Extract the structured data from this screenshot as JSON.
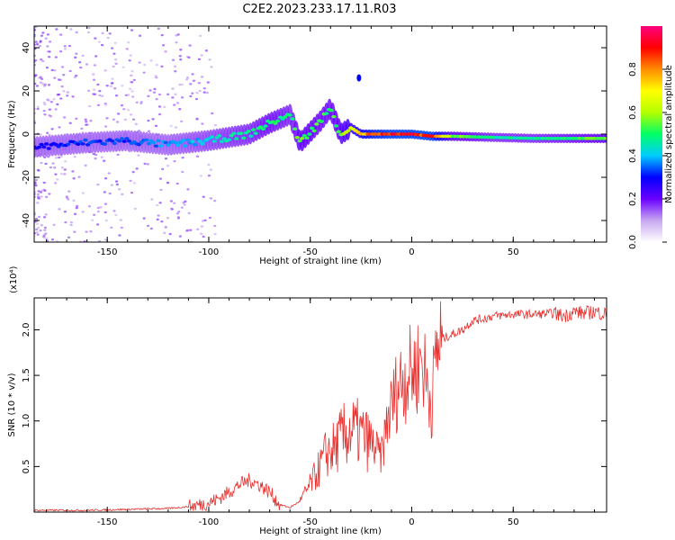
{
  "chart_data": [
    {
      "type": "heatmap",
      "title": "C2E2.2023.233.17.11.R03",
      "xlabel": "Height of straight line (km)",
      "ylabel": "Frequency (Hz)",
      "xlim": [
        -186,
        96
      ],
      "ylim": [
        -50,
        50
      ],
      "xticks": [
        -150,
        -100,
        -50,
        0,
        50
      ],
      "yticks": [
        -40,
        -20,
        0,
        20,
        40
      ],
      "colorbar": {
        "label": "Normalized spectral amplitude",
        "range": [
          0,
          1
        ],
        "ticks": [
          "0.0",
          "0.2",
          "0.4",
          "0.6",
          "0.8"
        ],
        "colors": [
          "#ffffff",
          "#c8a8f0",
          "#6a00ff",
          "#0000ff",
          "#00ccff",
          "#00ff66",
          "#b4ff00",
          "#ffff00",
          "#ff8c00",
          "#ff0000",
          "#ff0080"
        ]
      },
      "ridge": {
        "x": [
          -186,
          -160,
          -140,
          -120,
          -100,
          -80,
          -70,
          -60,
          -55,
          -45,
          -40,
          -35,
          -30,
          -25,
          -20,
          -10,
          0,
          10,
          20,
          40,
          60,
          80,
          96
        ],
        "frequency_hz": [
          -6,
          -4,
          -3,
          -5,
          -3,
          0,
          5,
          9,
          -4,
          6,
          12,
          0,
          3,
          0,
          0,
          0,
          0,
          -1,
          -1,
          -1.5,
          -2,
          -2,
          -2
        ],
        "amplitude": [
          0.3,
          0.35,
          0.35,
          0.4,
          0.45,
          0.5,
          0.55,
          0.5,
          0.6,
          0.55,
          0.55,
          0.6,
          0.7,
          0.8,
          0.9,
          0.95,
          0.95,
          0.95,
          0.6,
          0.5,
          0.5,
          0.55,
          0.6
        ]
      },
      "spike": {
        "x": -26,
        "frequency_hz": 26
      }
    },
    {
      "type": "line",
      "xlabel": "Height of straight line (km)",
      "ylabel": "SNR (10 * v/v)",
      "scale_label": "(x10⁴)",
      "xlim": [
        -186,
        96
      ],
      "ylim": [
        0,
        2.35
      ],
      "xticks": [
        -150,
        -100,
        -50,
        0,
        50
      ],
      "yticks": [
        "0.5",
        "1.0",
        "1.5",
        "2.0"
      ],
      "color": "#e8302e",
      "series": [
        {
          "name": "SNR",
          "x": [
            -186,
            -160,
            -140,
            -120,
            -110,
            -100,
            -95,
            -90,
            -85,
            -80,
            -75,
            -70,
            -65,
            -60,
            -55,
            -50,
            -45,
            -42,
            -38,
            -35,
            -30,
            -25,
            -20,
            -15,
            -12,
            -10,
            -8,
            -5,
            -2,
            0,
            3,
            5,
            7,
            10,
            12,
            15,
            20,
            25,
            30,
            35,
            40,
            50,
            60,
            70,
            75,
            80,
            85,
            90,
            96
          ],
          "values": [
            0.02,
            0.02,
            0.03,
            0.04,
            0.06,
            0.1,
            0.15,
            0.22,
            0.3,
            0.35,
            0.3,
            0.22,
            0.08,
            0.05,
            0.12,
            0.3,
            0.5,
            0.65,
            0.7,
            0.8,
            0.9,
            0.85,
            0.75,
            0.6,
            1.0,
            1.15,
            1.3,
            1.45,
            1.5,
            1.55,
            1.6,
            1.7,
            1.45,
            1.2,
            1.75,
            1.9,
            1.95,
            2.0,
            2.1,
            2.12,
            2.15,
            2.17,
            2.17,
            2.18,
            2.15,
            2.2,
            2.18,
            2.2,
            2.17
          ]
        }
      ]
    }
  ]
}
